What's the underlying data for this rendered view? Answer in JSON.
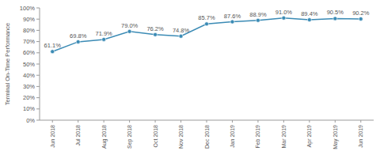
{
  "chart_data": {
    "type": "line",
    "y_label": "Terminal On-Time Performance",
    "categories": [
      "Jun 2018",
      "Jul 2018",
      "Aug 2018",
      "Sep 2018",
      "Oct 2018",
      "Nov 2018",
      "Dec 2018",
      "Jan 2019",
      "Feb 2019",
      "Mar 2019",
      "Apr 2019",
      "May 2019",
      "Jun 2019"
    ],
    "values": [
      61.1,
      69.8,
      71.9,
      79.0,
      76.2,
      74.8,
      85.7,
      87.6,
      88.9,
      91.0,
      89.4,
      90.5,
      90.2
    ],
    "value_labels": [
      "61.1%",
      "69.8%",
      "71.9%",
      "79.0%",
      "76.2%",
      "74.8%",
      "85.7%",
      "87.6%",
      "88.9%",
      "91.0%",
      "89.4%",
      "90.5%",
      "90.2%"
    ],
    "color": "#3b8bb5",
    "marker": "circle",
    "data_labels": true,
    "grid": false,
    "ylim": [
      0,
      100
    ],
    "yticks": [
      {
        "value": 0,
        "label": "0%"
      },
      {
        "value": 10,
        "label": "10%"
      },
      {
        "value": 20,
        "label": "20%"
      },
      {
        "value": 30,
        "label": "30%"
      },
      {
        "value": 40,
        "label": "40%"
      },
      {
        "value": 50,
        "label": "50%"
      },
      {
        "value": 60,
        "label": "60%"
      },
      {
        "value": 70,
        "label": "70%"
      },
      {
        "value": 80,
        "label": "80%"
      },
      {
        "value": 90,
        "label": "90%"
      },
      {
        "value": 100,
        "label": "100%"
      }
    ]
  }
}
